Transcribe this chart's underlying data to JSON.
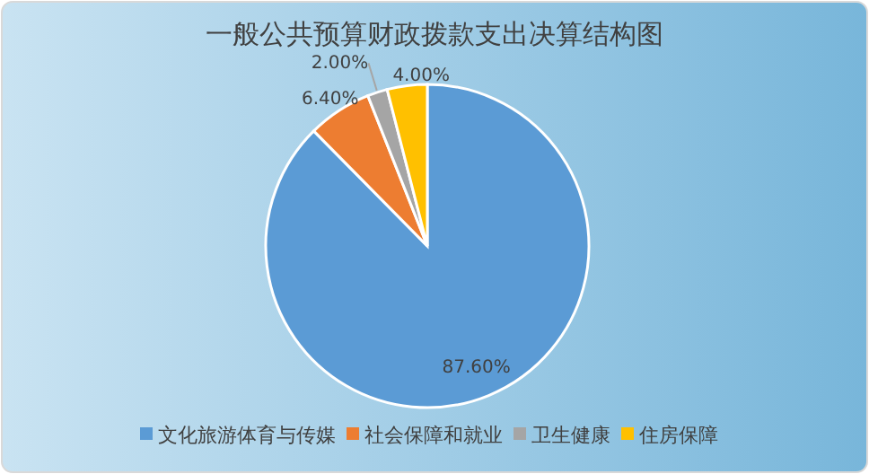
{
  "chart_data": {
    "type": "pie",
    "title": "一般公共预算财政拨款支出决算结构图",
    "categories": [
      "文化旅游体育与传媒",
      "社会保障和就业",
      "卫生健康",
      "住房保障"
    ],
    "values": [
      87.6,
      6.4,
      2.0,
      4.0
    ],
    "colors": [
      "#5b9bd5",
      "#ed7d31",
      "#a5a5a5",
      "#ffc000"
    ],
    "value_labels": [
      "87.60%",
      "6.40%",
      "2.00%",
      "4.00%"
    ],
    "legend": "bottom"
  }
}
